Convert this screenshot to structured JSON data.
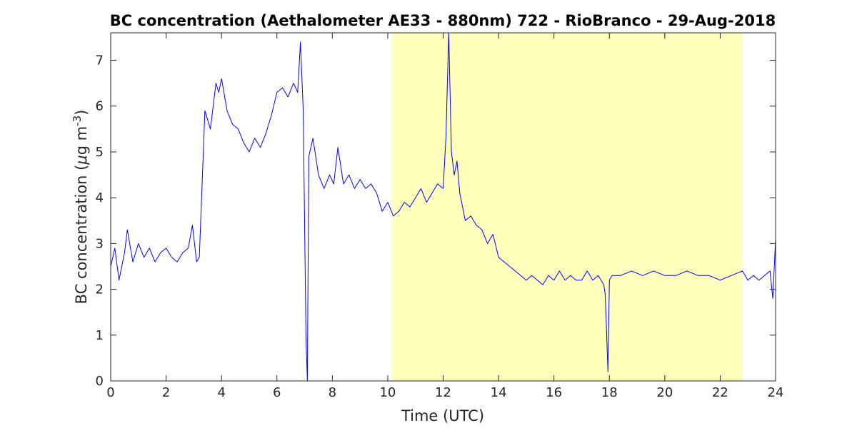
{
  "chart_data": {
    "type": "line",
    "title": "BC concentration (Aethalometer AE33 - 880nm) 722 - RioBranco - 29-Aug-2018",
    "xlabel": "Time (UTC)",
    "ylabel": {
      "prefix": "BC concentration (",
      "mu": "μ",
      "unit": "g m",
      "exp": "-3",
      "suffix": ")"
    },
    "xlim": [
      0,
      24
    ],
    "ylim": [
      0,
      7.6
    ],
    "xticks": [
      0,
      2,
      4,
      6,
      8,
      10,
      12,
      14,
      16,
      18,
      20,
      22,
      24
    ],
    "yticks": [
      0,
      1,
      2,
      3,
      4,
      5,
      6,
      7
    ],
    "grid": false,
    "shaded_region": {
      "x_start": 10.15,
      "x_end": 22.8,
      "color": "#ffffbb"
    },
    "series": [
      {
        "color": "#0000ff",
        "x": [
          0,
          0.15,
          0.3,
          0.5,
          0.6,
          0.8,
          1.0,
          1.2,
          1.4,
          1.6,
          1.8,
          2.0,
          2.2,
          2.4,
          2.6,
          2.8,
          2.95,
          3.1,
          3.2,
          3.3,
          3.4,
          3.6,
          3.8,
          3.9,
          4.0,
          4.2,
          4.4,
          4.6,
          4.8,
          5.0,
          5.2,
          5.4,
          5.6,
          5.8,
          6.0,
          6.2,
          6.4,
          6.6,
          6.75,
          6.85,
          6.95,
          7.05,
          7.1,
          7.15,
          7.3,
          7.5,
          7.7,
          7.9,
          8.05,
          8.2,
          8.4,
          8.6,
          8.8,
          9.0,
          9.2,
          9.4,
          9.6,
          9.8,
          10.0,
          10.2,
          10.4,
          10.6,
          10.8,
          11.0,
          11.2,
          11.4,
          11.6,
          11.8,
          12.0,
          12.1,
          12.2,
          12.3,
          12.4,
          12.5,
          12.6,
          12.8,
          13.0,
          13.2,
          13.4,
          13.6,
          13.8,
          14.0,
          14.2,
          14.4,
          14.6,
          14.8,
          15.0,
          15.2,
          15.4,
          15.6,
          15.8,
          16.0,
          16.2,
          16.4,
          16.6,
          16.8,
          17.0,
          17.2,
          17.4,
          17.6,
          17.8,
          17.85,
          17.95,
          18.0,
          18.1,
          18.4,
          18.8,
          19.2,
          19.6,
          20.0,
          20.4,
          20.8,
          21.2,
          21.6,
          22.0,
          22.4,
          22.8,
          23.0,
          23.2,
          23.4,
          23.6,
          23.8,
          23.9,
          24.0
        ],
        "y": [
          2.5,
          2.9,
          2.2,
          2.8,
          3.3,
          2.6,
          3.0,
          2.7,
          2.9,
          2.6,
          2.8,
          2.9,
          2.7,
          2.6,
          2.8,
          2.9,
          3.4,
          2.6,
          2.7,
          4.3,
          5.9,
          5.5,
          6.5,
          6.3,
          6.6,
          5.9,
          5.6,
          5.5,
          5.2,
          5.0,
          5.3,
          5.1,
          5.4,
          5.8,
          6.3,
          6.4,
          6.2,
          6.5,
          6.3,
          7.4,
          5.9,
          0.9,
          0.0,
          4.9,
          5.3,
          4.5,
          4.2,
          4.5,
          4.3,
          5.1,
          4.3,
          4.5,
          4.2,
          4.4,
          4.2,
          4.3,
          4.1,
          3.7,
          3.9,
          3.6,
          3.7,
          3.9,
          3.8,
          4.0,
          4.2,
          3.9,
          4.1,
          4.3,
          4.2,
          5.3,
          7.6,
          5.0,
          4.5,
          4.8,
          4.1,
          3.5,
          3.6,
          3.4,
          3.3,
          3.0,
          3.2,
          2.7,
          2.6,
          2.5,
          2.4,
          2.3,
          2.2,
          2.3,
          2.2,
          2.1,
          2.3,
          2.2,
          2.4,
          2.2,
          2.3,
          2.2,
          2.2,
          2.4,
          2.2,
          2.3,
          2.1,
          1.9,
          0.2,
          2.2,
          2.3,
          2.3,
          2.4,
          2.3,
          2.4,
          2.3,
          2.3,
          2.4,
          2.3,
          2.3,
          2.2,
          2.3,
          2.4,
          2.2,
          2.3,
          2.2,
          2.3,
          2.4,
          1.8,
          3.1
        ]
      }
    ]
  }
}
